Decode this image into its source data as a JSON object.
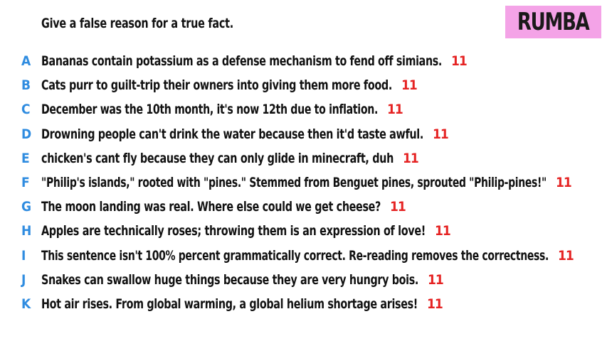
{
  "header": {
    "prompt": "Give a false reason for a true fact.",
    "badge_label": "RUMBA",
    "badge_color": "#f4a3e7"
  },
  "colors": {
    "letter": "#2f8ce0",
    "score": "#e52222",
    "text": "#111111"
  },
  "answers": [
    {
      "letter": "A",
      "text": "Bananas contain potassium as a defense mechanism to fend off simians.",
      "score": "11"
    },
    {
      "letter": "B",
      "text": "Cats purr to guilt-trip their owners into giving them more food.",
      "score": "11"
    },
    {
      "letter": "C",
      "text": "December was the 10th month, it's now 12th due to inflation.",
      "score": "11"
    },
    {
      "letter": "D",
      "text": "Drowning people can't drink the water because then it'd taste awful.",
      "score": "11"
    },
    {
      "letter": "E",
      "text": "chicken's cant fly because they can only glide in minecraft, duh",
      "score": "11"
    },
    {
      "letter": "F",
      "text": "\"Philip's islands,\" rooted with \"pines.\" Stemmed from Benguet pines, sprouted \"Philip-pines!\"",
      "score": "11"
    },
    {
      "letter": "G",
      "text": "The moon landing was real. Where else could we get cheese?",
      "score": "11"
    },
    {
      "letter": "H",
      "text": "Apples are technically roses; throwing them is an expression of love!",
      "score": "11"
    },
    {
      "letter": "I",
      "text": "This sentence isn't 100% percent grammatically correct. Re-reading removes the correctness.",
      "score": "11"
    },
    {
      "letter": "J",
      "text": "Snakes can swallow huge things because they are very hungry bois.",
      "score": "11"
    },
    {
      "letter": "K",
      "text": "Hot air rises. From global warming, a global helium shortage arises!",
      "score": "11"
    }
  ]
}
